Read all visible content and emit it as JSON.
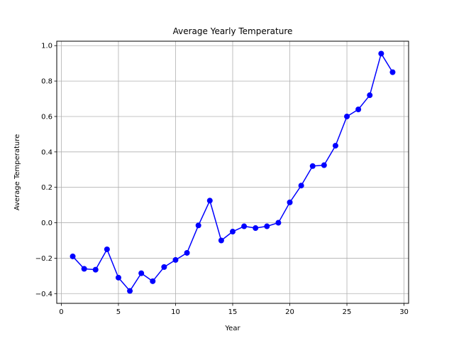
{
  "chart_data": {
    "type": "line",
    "title": "Average Yearly Temperature",
    "xlabel": "Year",
    "ylabel": "Average Temperature",
    "xlim": [
      -0.4,
      30.4
    ],
    "ylim": [
      -0.455,
      1.025
    ],
    "xticks": [
      0,
      5,
      10,
      15,
      20,
      25,
      30
    ],
    "yticks": [
      -0.4,
      -0.2,
      0.0,
      0.2,
      0.4,
      0.6,
      0.8,
      1.0
    ],
    "grid": true,
    "series": [
      {
        "color": "#0000ff",
        "marker": "circle",
        "x": [
          1,
          2,
          3,
          4,
          5,
          6,
          7,
          8,
          9,
          10,
          11,
          12,
          13,
          14,
          15,
          16,
          17,
          18,
          19,
          20,
          21,
          22,
          23,
          24,
          25,
          26,
          27,
          28,
          29
        ],
        "y": [
          -0.19,
          -0.26,
          -0.265,
          -0.15,
          -0.31,
          -0.385,
          -0.285,
          -0.33,
          -0.25,
          -0.21,
          -0.17,
          -0.015,
          0.125,
          -0.1,
          -0.05,
          -0.02,
          -0.03,
          -0.02,
          0.0,
          0.115,
          0.21,
          0.32,
          0.325,
          0.435,
          0.6,
          0.64,
          0.72,
          0.955,
          0.85
        ]
      }
    ]
  }
}
